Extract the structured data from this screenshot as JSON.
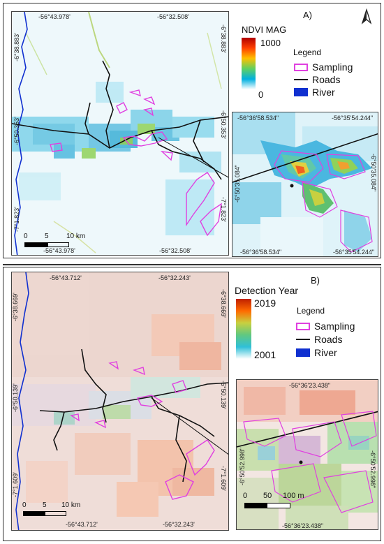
{
  "panel_a": {
    "label": "A)",
    "top_coords": [
      "-56°43.978'",
      "-56°32.508'"
    ],
    "bottom_coords": [
      "-56°43.978'",
      "-56°32.508'"
    ],
    "left_coords": [
      "-6°38.883'",
      "-6°50.353'",
      "-7°1.823'"
    ],
    "right_coords": [
      "-6°38.883'",
      "-6°50.353'",
      "-7°1.823'"
    ],
    "colorbar_title": "NDVI MAG",
    "colorbar_max": "1000",
    "colorbar_min": "0",
    "legend_title": "Legend",
    "legend_items": [
      "Sampling",
      "Roads",
      "River"
    ],
    "scale_labels": [
      "0",
      "5",
      "10 km"
    ],
    "inset_top_coords": [
      "-56°36'58.534\"",
      "-56°35'54.244\""
    ],
    "inset_bottom_coords": [
      "-56°36'58.534\"",
      "-56°35'54.244\""
    ],
    "inset_left_coord": "-6°50'35.084\"",
    "inset_right_coord": "-6°50'35.084\""
  },
  "panel_b": {
    "label": "B)",
    "top_coords": [
      "-56°43.712'",
      "-56°32.243'"
    ],
    "bottom_coords": [
      "-56°43.712'",
      "-56°32.243'"
    ],
    "left_coords": [
      "-6°38.669'",
      "-6°50.139'",
      "-7°1.609'"
    ],
    "right_coords": [
      "-6°38.669'",
      "-6°50.139'",
      "-7°1.609'"
    ],
    "colorbar_title": "Detection Year",
    "colorbar_max": "2019",
    "colorbar_min": "2001",
    "legend_title": "Legend",
    "legend_items": [
      "Sampling",
      "Roads",
      "River"
    ],
    "scale_labels": [
      "0",
      "5",
      "10 km"
    ],
    "inset_top_coord": "-56°36'23.438\"",
    "inset_bottom_coord": "-56°36'23.438\"",
    "inset_left_coord": "-6°50'52.998\"",
    "inset_right_coord": "-6°50'52.998\"",
    "inset_scale_labels": [
      "0",
      "50",
      "100 m"
    ]
  },
  "colors": {
    "sampling": "#e040e0",
    "roads": "#111111",
    "river": "#1030d0"
  },
  "north_arrow": "north-arrow-icon"
}
